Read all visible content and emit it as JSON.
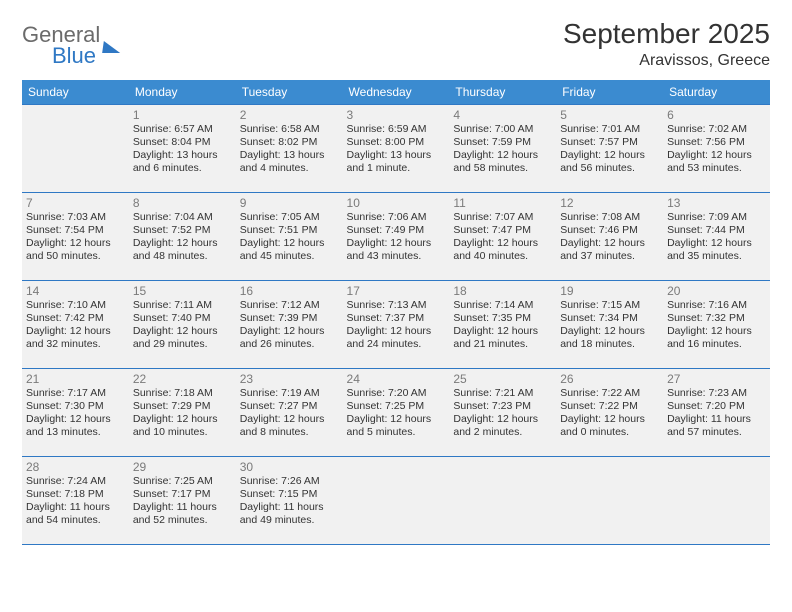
{
  "brand": {
    "part1": "General",
    "part2": "Blue"
  },
  "title": "September 2025",
  "location": "Aravissos, Greece",
  "colors": {
    "header_bg": "#3b8bd0",
    "header_text": "#ffffff",
    "cell_bg": "#f1f1f1",
    "row_border": "#2f78c4",
    "daynum": "#7a7a7a",
    "text": "#333333",
    "logo_gray": "#6b6b6b",
    "logo_blue": "#2f78c4"
  },
  "dow": [
    "Sunday",
    "Monday",
    "Tuesday",
    "Wednesday",
    "Thursday",
    "Friday",
    "Saturday"
  ],
  "weeks": [
    [
      null,
      {
        "n": "1",
        "sr": "Sunrise: 6:57 AM",
        "ss": "Sunset: 8:04 PM",
        "d1": "Daylight: 13 hours",
        "d2": "and 6 minutes."
      },
      {
        "n": "2",
        "sr": "Sunrise: 6:58 AM",
        "ss": "Sunset: 8:02 PM",
        "d1": "Daylight: 13 hours",
        "d2": "and 4 minutes."
      },
      {
        "n": "3",
        "sr": "Sunrise: 6:59 AM",
        "ss": "Sunset: 8:00 PM",
        "d1": "Daylight: 13 hours",
        "d2": "and 1 minute."
      },
      {
        "n": "4",
        "sr": "Sunrise: 7:00 AM",
        "ss": "Sunset: 7:59 PM",
        "d1": "Daylight: 12 hours",
        "d2": "and 58 minutes."
      },
      {
        "n": "5",
        "sr": "Sunrise: 7:01 AM",
        "ss": "Sunset: 7:57 PM",
        "d1": "Daylight: 12 hours",
        "d2": "and 56 minutes."
      },
      {
        "n": "6",
        "sr": "Sunrise: 7:02 AM",
        "ss": "Sunset: 7:56 PM",
        "d1": "Daylight: 12 hours",
        "d2": "and 53 minutes."
      }
    ],
    [
      {
        "n": "7",
        "sr": "Sunrise: 7:03 AM",
        "ss": "Sunset: 7:54 PM",
        "d1": "Daylight: 12 hours",
        "d2": "and 50 minutes."
      },
      {
        "n": "8",
        "sr": "Sunrise: 7:04 AM",
        "ss": "Sunset: 7:52 PM",
        "d1": "Daylight: 12 hours",
        "d2": "and 48 minutes."
      },
      {
        "n": "9",
        "sr": "Sunrise: 7:05 AM",
        "ss": "Sunset: 7:51 PM",
        "d1": "Daylight: 12 hours",
        "d2": "and 45 minutes."
      },
      {
        "n": "10",
        "sr": "Sunrise: 7:06 AM",
        "ss": "Sunset: 7:49 PM",
        "d1": "Daylight: 12 hours",
        "d2": "and 43 minutes."
      },
      {
        "n": "11",
        "sr": "Sunrise: 7:07 AM",
        "ss": "Sunset: 7:47 PM",
        "d1": "Daylight: 12 hours",
        "d2": "and 40 minutes."
      },
      {
        "n": "12",
        "sr": "Sunrise: 7:08 AM",
        "ss": "Sunset: 7:46 PM",
        "d1": "Daylight: 12 hours",
        "d2": "and 37 minutes."
      },
      {
        "n": "13",
        "sr": "Sunrise: 7:09 AM",
        "ss": "Sunset: 7:44 PM",
        "d1": "Daylight: 12 hours",
        "d2": "and 35 minutes."
      }
    ],
    [
      {
        "n": "14",
        "sr": "Sunrise: 7:10 AM",
        "ss": "Sunset: 7:42 PM",
        "d1": "Daylight: 12 hours",
        "d2": "and 32 minutes."
      },
      {
        "n": "15",
        "sr": "Sunrise: 7:11 AM",
        "ss": "Sunset: 7:40 PM",
        "d1": "Daylight: 12 hours",
        "d2": "and 29 minutes."
      },
      {
        "n": "16",
        "sr": "Sunrise: 7:12 AM",
        "ss": "Sunset: 7:39 PM",
        "d1": "Daylight: 12 hours",
        "d2": "and 26 minutes."
      },
      {
        "n": "17",
        "sr": "Sunrise: 7:13 AM",
        "ss": "Sunset: 7:37 PM",
        "d1": "Daylight: 12 hours",
        "d2": "and 24 minutes."
      },
      {
        "n": "18",
        "sr": "Sunrise: 7:14 AM",
        "ss": "Sunset: 7:35 PM",
        "d1": "Daylight: 12 hours",
        "d2": "and 21 minutes."
      },
      {
        "n": "19",
        "sr": "Sunrise: 7:15 AM",
        "ss": "Sunset: 7:34 PM",
        "d1": "Daylight: 12 hours",
        "d2": "and 18 minutes."
      },
      {
        "n": "20",
        "sr": "Sunrise: 7:16 AM",
        "ss": "Sunset: 7:32 PM",
        "d1": "Daylight: 12 hours",
        "d2": "and 16 minutes."
      }
    ],
    [
      {
        "n": "21",
        "sr": "Sunrise: 7:17 AM",
        "ss": "Sunset: 7:30 PM",
        "d1": "Daylight: 12 hours",
        "d2": "and 13 minutes."
      },
      {
        "n": "22",
        "sr": "Sunrise: 7:18 AM",
        "ss": "Sunset: 7:29 PM",
        "d1": "Daylight: 12 hours",
        "d2": "and 10 minutes."
      },
      {
        "n": "23",
        "sr": "Sunrise: 7:19 AM",
        "ss": "Sunset: 7:27 PM",
        "d1": "Daylight: 12 hours",
        "d2": "and 8 minutes."
      },
      {
        "n": "24",
        "sr": "Sunrise: 7:20 AM",
        "ss": "Sunset: 7:25 PM",
        "d1": "Daylight: 12 hours",
        "d2": "and 5 minutes."
      },
      {
        "n": "25",
        "sr": "Sunrise: 7:21 AM",
        "ss": "Sunset: 7:23 PM",
        "d1": "Daylight: 12 hours",
        "d2": "and 2 minutes."
      },
      {
        "n": "26",
        "sr": "Sunrise: 7:22 AM",
        "ss": "Sunset: 7:22 PM",
        "d1": "Daylight: 12 hours",
        "d2": "and 0 minutes."
      },
      {
        "n": "27",
        "sr": "Sunrise: 7:23 AM",
        "ss": "Sunset: 7:20 PM",
        "d1": "Daylight: 11 hours",
        "d2": "and 57 minutes."
      }
    ],
    [
      {
        "n": "28",
        "sr": "Sunrise: 7:24 AM",
        "ss": "Sunset: 7:18 PM",
        "d1": "Daylight: 11 hours",
        "d2": "and 54 minutes."
      },
      {
        "n": "29",
        "sr": "Sunrise: 7:25 AM",
        "ss": "Sunset: 7:17 PM",
        "d1": "Daylight: 11 hours",
        "d2": "and 52 minutes."
      },
      {
        "n": "30",
        "sr": "Sunrise: 7:26 AM",
        "ss": "Sunset: 7:15 PM",
        "d1": "Daylight: 11 hours",
        "d2": "and 49 minutes."
      },
      null,
      null,
      null,
      null
    ]
  ]
}
